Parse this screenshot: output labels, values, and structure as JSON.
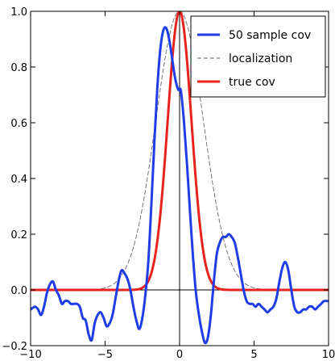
{
  "chart_data": {
    "type": "line",
    "title": "",
    "xlabel": "",
    "ylabel": "",
    "xlim": [
      -10,
      10
    ],
    "ylim": [
      -0.2,
      1.0
    ],
    "x_ticks": [
      -10,
      -5,
      0,
      5,
      10
    ],
    "x_tick_labels": [
      "−10",
      "−5",
      "0",
      "5",
      "10"
    ],
    "y_ticks": [
      -0.2,
      0.0,
      0.2,
      0.4,
      0.6,
      0.8,
      1.0
    ],
    "y_tick_labels": [
      "−0.2",
      "0.0",
      "0.2",
      "0.4",
      "0.6",
      "0.8",
      "1.0"
    ],
    "grid": false,
    "legend_position": "top-right",
    "reference_lines": [
      {
        "orientation": "horizontal",
        "value": 0.0,
        "color": "#000000"
      },
      {
        "orientation": "vertical",
        "value": 0.0,
        "color": "#000000"
      }
    ],
    "series": [
      {
        "name": "50 sample cov",
        "color": "#1f3de6",
        "style": "solid",
        "x": [
          -10,
          -9.7,
          -9.5,
          -9.3,
          -9.1,
          -8.9,
          -8.7,
          -8.5,
          -8.3,
          -8.1,
          -7.9,
          -7.7,
          -7.5,
          -7.3,
          -7.1,
          -6.9,
          -6.7,
          -6.5,
          -6.3,
          -6.1,
          -5.9,
          -5.7,
          -5.5,
          -5.3,
          -5.1,
          -4.9,
          -4.7,
          -4.5,
          -4.3,
          -4.1,
          -3.9,
          -3.7,
          -3.5,
          -3.3,
          -3.1,
          -2.9,
          -2.7,
          -2.5,
          -2.3,
          -2.1,
          -1.9,
          -1.7,
          -1.5,
          -1.3,
          -1.1,
          -0.9,
          -0.7,
          -0.5,
          -0.3,
          -0.1,
          0.0,
          0.1,
          0.3,
          0.5,
          0.7,
          0.9,
          1.1,
          1.3,
          1.5,
          1.7,
          1.9,
          2.1,
          2.3,
          2.5,
          2.7,
          2.9,
          3.1,
          3.3,
          3.5,
          3.7,
          3.9,
          4.1,
          4.3,
          4.5,
          4.7,
          4.9,
          5.1,
          5.3,
          5.5,
          5.7,
          5.9,
          6.1,
          6.3,
          6.5,
          6.7,
          6.9,
          7.1,
          7.3,
          7.5,
          7.7,
          7.9,
          8.1,
          8.3,
          8.5,
          8.7,
          8.9,
          9.1,
          9.3,
          9.5,
          9.7,
          10
        ],
        "y": [
          -0.07,
          -0.06,
          -0.07,
          -0.09,
          -0.06,
          -0.01,
          0.02,
          0.03,
          0.0,
          -0.02,
          -0.05,
          -0.04,
          -0.04,
          -0.05,
          -0.05,
          -0.05,
          -0.06,
          -0.1,
          -0.11,
          -0.16,
          -0.18,
          -0.12,
          -0.09,
          -0.08,
          -0.1,
          -0.13,
          -0.12,
          -0.09,
          -0.03,
          0.03,
          0.07,
          0.06,
          0.04,
          0.0,
          -0.06,
          -0.11,
          -0.14,
          -0.1,
          -0.02,
          0.1,
          0.3,
          0.52,
          0.72,
          0.86,
          0.93,
          0.94,
          0.9,
          0.83,
          0.76,
          0.72,
          0.72,
          0.71,
          0.6,
          0.45,
          0.28,
          0.12,
          -0.01,
          -0.09,
          -0.15,
          -0.19,
          -0.17,
          -0.09,
          0.03,
          0.13,
          0.17,
          0.19,
          0.19,
          0.2,
          0.19,
          0.17,
          0.12,
          0.06,
          0.0,
          -0.04,
          -0.05,
          -0.05,
          -0.06,
          -0.05,
          -0.06,
          -0.07,
          -0.08,
          -0.07,
          -0.06,
          -0.03,
          0.03,
          0.08,
          0.1,
          0.07,
          0.0,
          -0.06,
          -0.08,
          -0.08,
          -0.07,
          -0.07,
          -0.06,
          -0.06,
          -0.07,
          -0.06,
          -0.05,
          -0.04,
          -0.04
        ]
      },
      {
        "name": "localization",
        "color": "#666666",
        "style": "dashed",
        "kind": "gaussian",
        "amplitude": 1.0,
        "width": 1.6
      },
      {
        "name": "true cov",
        "color": "#e8231e",
        "style": "solid",
        "kind": "gaussian",
        "amplitude": 1.0,
        "width": 0.8
      }
    ]
  }
}
